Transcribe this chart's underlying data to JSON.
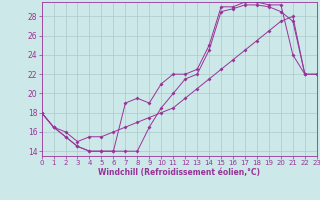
{
  "xlabel": "Windchill (Refroidissement éolien,°C)",
  "bg_color": "#cce8e8",
  "line_color": "#993399",
  "xlim": [
    0,
    23
  ],
  "ylim": [
    13.5,
    29.5
  ],
  "xticks": [
    0,
    1,
    2,
    3,
    4,
    5,
    6,
    7,
    8,
    9,
    10,
    11,
    12,
    13,
    14,
    15,
    16,
    17,
    18,
    19,
    20,
    21,
    22,
    23
  ],
  "yticks": [
    14,
    16,
    18,
    20,
    22,
    24,
    26,
    28
  ],
  "grid_color": "#aacccc",
  "line1_x": [
    0,
    1,
    2,
    3,
    4,
    5,
    6,
    7,
    8,
    9,
    10,
    11,
    12,
    13,
    14,
    15,
    16,
    17,
    18,
    19,
    20,
    21,
    22
  ],
  "line1_y": [
    18.0,
    16.5,
    15.5,
    14.5,
    14.0,
    14.0,
    14.0,
    14.0,
    14.0,
    16.5,
    18.5,
    20.0,
    21.5,
    22.0,
    24.5,
    28.5,
    28.8,
    29.2,
    29.2,
    29.0,
    28.5,
    27.5,
    22.0
  ],
  "line2_x": [
    0,
    1,
    2,
    3,
    4,
    5,
    6,
    7,
    8,
    9,
    10,
    11,
    12,
    13,
    14,
    15,
    16,
    17,
    18,
    19,
    20,
    21,
    22,
    23
  ],
  "line2_y": [
    18.0,
    16.5,
    15.5,
    14.5,
    14.0,
    14.0,
    14.0,
    19.0,
    19.5,
    19.0,
    21.0,
    22.0,
    22.0,
    22.5,
    25.0,
    29.0,
    29.0,
    29.5,
    29.5,
    29.2,
    29.2,
    24.0,
    22.0,
    22.0
  ],
  "line3_x": [
    0,
    1,
    2,
    3,
    4,
    5,
    6,
    7,
    8,
    9,
    10,
    11,
    12,
    13,
    14,
    15,
    16,
    17,
    18,
    19,
    20,
    21,
    22,
    23
  ],
  "line3_y": [
    18.0,
    16.5,
    16.0,
    15.0,
    15.5,
    15.5,
    16.0,
    16.5,
    17.0,
    17.5,
    18.0,
    18.5,
    19.5,
    20.5,
    21.5,
    22.5,
    23.5,
    24.5,
    25.5,
    26.5,
    27.5,
    28.0,
    22.0,
    22.0
  ]
}
